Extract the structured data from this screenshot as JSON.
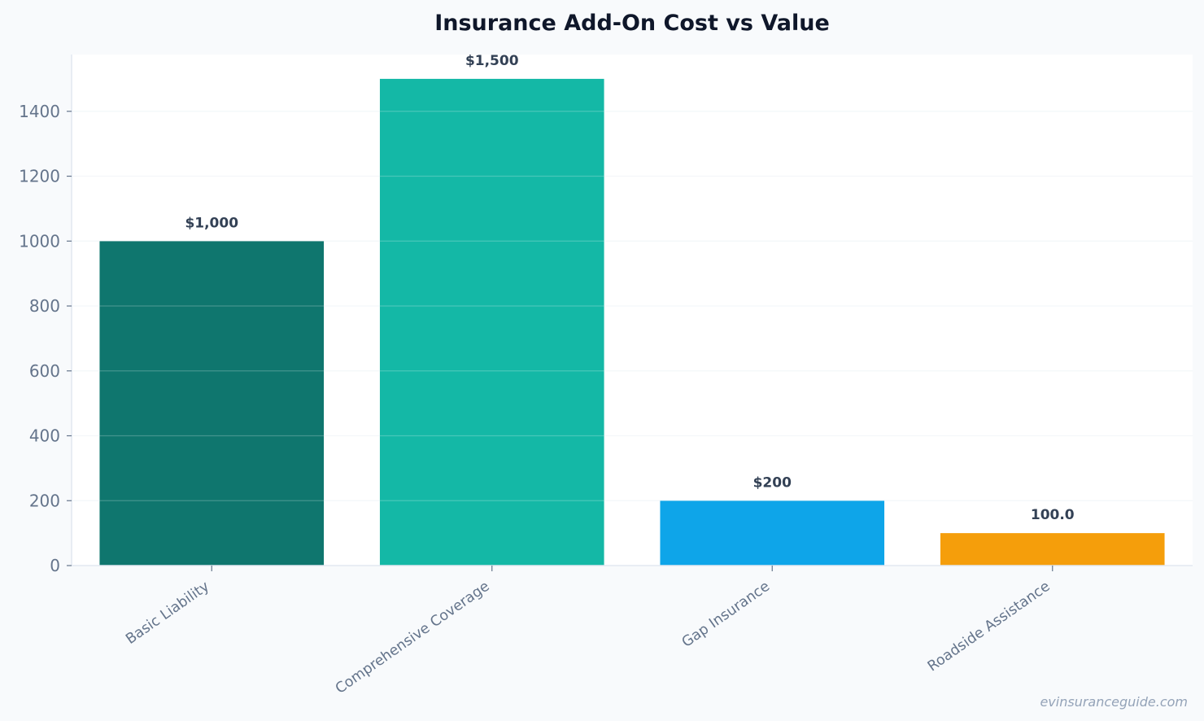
{
  "chart_data": {
    "type": "bar",
    "title": "Insurance Add-On Cost vs Value",
    "xlabel": "",
    "ylabel": "",
    "categories": [
      "Basic Liability",
      "Comprehensive Coverage",
      "Gap Insurance",
      "Roadside Assistance"
    ],
    "values": [
      1000,
      1500,
      200,
      100
    ],
    "data_labels": [
      "$1,000",
      "$1,500",
      "$200",
      "100.0"
    ],
    "colors": [
      "#0f766e",
      "#14b8a6",
      "#0ea5e9",
      "#f59e0b"
    ],
    "ylim": [
      0,
      1575
    ],
    "yticks": [
      0,
      200,
      400,
      600,
      800,
      1000,
      1200,
      1400
    ],
    "grid": true,
    "legend": "none"
  },
  "watermark": "evinsuranceguide.com"
}
